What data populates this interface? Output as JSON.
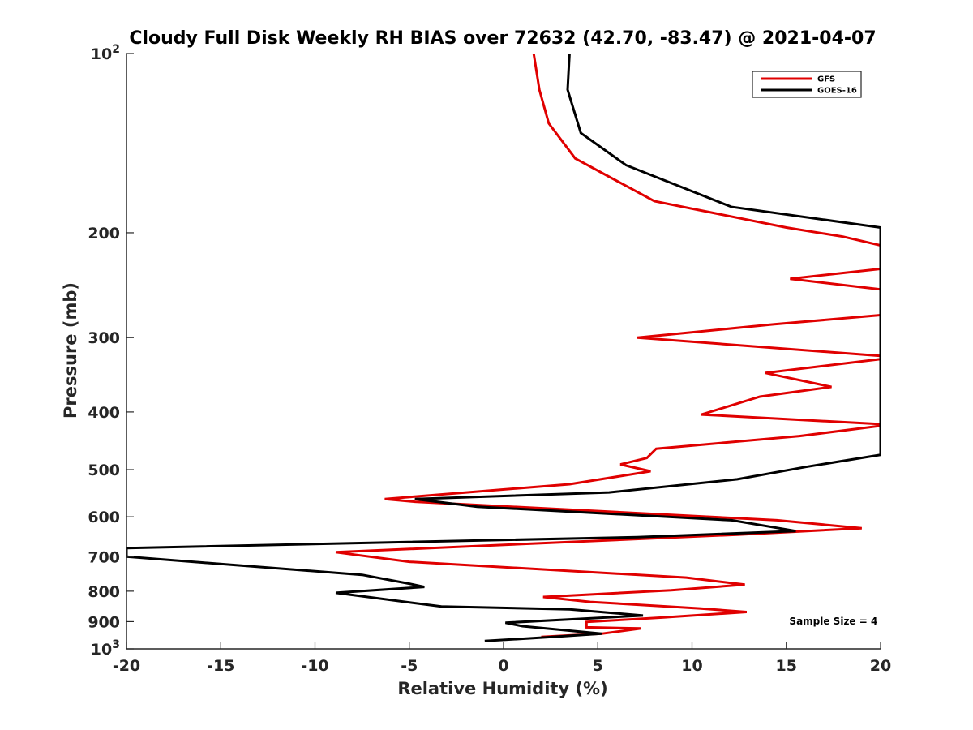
{
  "chart_data": {
    "type": "line",
    "title": "Cloudy Full Disk Weekly RH BIAS over 72632 (42.70, -83.47) @ 2021-04-07",
    "xlabel": "Relative Humidity (%)",
    "ylabel": "Pressure (mb)",
    "xlim": [
      -20,
      20
    ],
    "ylim": [
      100,
      1000
    ],
    "yscale": "log",
    "y_reversed": true,
    "grid": false,
    "legend_position": "top-right",
    "x_ticks": [
      {
        "value": -20,
        "label": "-20"
      },
      {
        "value": -15,
        "label": "-15"
      },
      {
        "value": -10,
        "label": "-10"
      },
      {
        "value": -5,
        "label": "-5"
      },
      {
        "value": 0,
        "label": "0"
      },
      {
        "value": 5,
        "label": "5"
      },
      {
        "value": 10,
        "label": "10"
      },
      {
        "value": 15,
        "label": "15"
      },
      {
        "value": 20,
        "label": "20"
      }
    ],
    "y_ticks": [
      {
        "value": 100,
        "label": "10",
        "sup": "2"
      },
      {
        "value": 200,
        "label": "200"
      },
      {
        "value": 300,
        "label": "300"
      },
      {
        "value": 400,
        "label": "400"
      },
      {
        "value": 500,
        "label": "500"
      },
      {
        "value": 600,
        "label": "600"
      },
      {
        "value": 700,
        "label": "700"
      },
      {
        "value": 800,
        "label": "800"
      },
      {
        "value": 900,
        "label": "900"
      },
      {
        "value": 1000,
        "label": "10",
        "sup": "3"
      }
    ],
    "series": [
      {
        "name": "GFS",
        "color": "#e00000",
        "points": [
          [
            1.6,
            100
          ],
          [
            1.9,
            115
          ],
          [
            2.4,
            131
          ],
          [
            3.8,
            150
          ],
          [
            8.0,
            177
          ],
          [
            15.0,
            196
          ],
          [
            18.0,
            203
          ],
          [
            20.0,
            210
          ],
          [
            20.0,
            230
          ],
          [
            15.2,
            239
          ],
          [
            20.0,
            249
          ],
          [
            20.0,
            275
          ],
          [
            14.3,
            285
          ],
          [
            7.1,
            300
          ],
          [
            20.0,
            322
          ],
          [
            20.0,
            326
          ],
          [
            13.9,
            344
          ],
          [
            17.4,
            363
          ],
          [
            13.6,
            377
          ],
          [
            10.5,
            404
          ],
          [
            20.5,
            420
          ],
          [
            15.7,
            439
          ],
          [
            8.1,
            461
          ],
          [
            7.6,
            478
          ],
          [
            6.2,
            490
          ],
          [
            7.8,
            503
          ],
          [
            3.5,
            529
          ],
          [
            -6.3,
            560
          ],
          [
            -4.7,
            566
          ],
          [
            14.5,
            608
          ],
          [
            19.0,
            627
          ],
          [
            12.4,
            643
          ],
          [
            -8.9,
            688
          ],
          [
            -5.0,
            714
          ],
          [
            9.7,
            759
          ],
          [
            12.8,
            780
          ],
          [
            8.9,
            797
          ],
          [
            2.1,
            818
          ],
          [
            4.6,
            834
          ],
          [
            10.4,
            855
          ],
          [
            12.9,
            867
          ],
          [
            8.4,
            886
          ],
          [
            4.4,
            901
          ],
          [
            4.4,
            920
          ],
          [
            7.3,
            924
          ],
          [
            5.2,
            943
          ],
          [
            2.0,
            955
          ]
        ]
      },
      {
        "name": "GOES-16",
        "color": "#000000",
        "points": [
          [
            3.5,
            100
          ],
          [
            3.4,
            115
          ],
          [
            4.1,
            136
          ],
          [
            6.5,
            154
          ],
          [
            12.1,
            181
          ],
          [
            20.0,
            196
          ],
          [
            20.0,
            472
          ],
          [
            16.0,
            495
          ],
          [
            12.4,
            519
          ],
          [
            5.6,
            546
          ],
          [
            -4.7,
            560
          ],
          [
            -1.4,
            577
          ],
          [
            12.1,
            608
          ],
          [
            15.5,
            634
          ],
          [
            7.1,
            649
          ],
          [
            -20.0,
            677
          ],
          [
            -20.0,
            700
          ],
          [
            -16.0,
            716
          ],
          [
            -7.5,
            751
          ],
          [
            -5.0,
            777
          ],
          [
            -4.2,
            787
          ],
          [
            -8.9,
            805
          ],
          [
            -3.3,
            849
          ],
          [
            3.5,
            858
          ],
          [
            7.4,
            879
          ],
          [
            0.1,
            904
          ],
          [
            1.0,
            916
          ],
          [
            5.2,
            943
          ],
          [
            2.6,
            955
          ],
          [
            -1.0,
            970
          ]
        ]
      }
    ],
    "legend": [
      "GFS",
      "GOES-16"
    ],
    "annotations": [
      {
        "text": "Sample Size = 4",
        "x": 17.5,
        "y": 910
      }
    ]
  }
}
